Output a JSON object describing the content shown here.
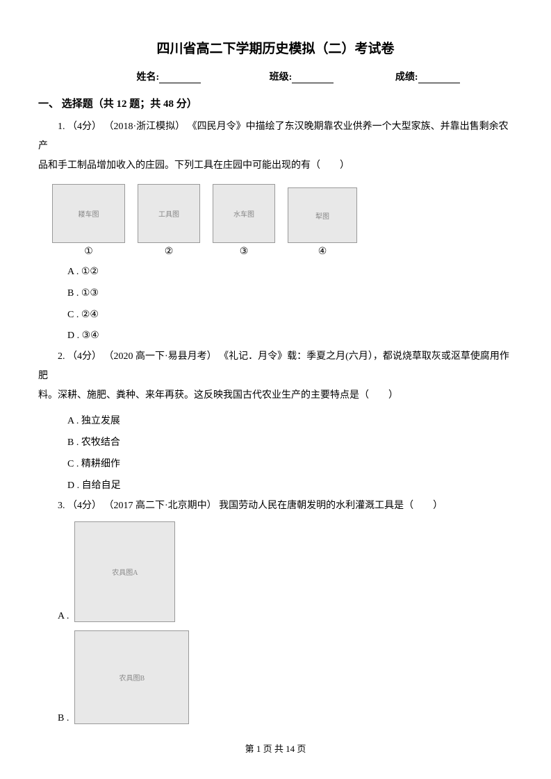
{
  "title": "四川省高二下学期历史模拟（二）考试卷",
  "info": {
    "name_label": "姓名:",
    "class_label": "班级:",
    "score_label": "成绩:"
  },
  "section": {
    "header": "一、 选择题（共 12 题；共 48 分）"
  },
  "q1": {
    "text1": "1. （4分） （2018·浙江模拟） 《四民月令》中描绘了东汉晚期靠农业供养一个大型家族、并靠出售剩余农产",
    "text2": "品和手工制品增加收入的庄园。下列工具在庄园中可能出现的有（　　）",
    "img_labels": [
      "①",
      "②",
      "③",
      "④"
    ],
    "img_alts": [
      "耧车图",
      "工具图",
      "水车图",
      "犁图"
    ],
    "options": {
      "a": "A .  ①②",
      "b": "B .  ①③",
      "c": "C .  ②④",
      "d": "D .  ③④"
    }
  },
  "q2": {
    "text1": "2. （4分） （2020 高一下·易县月考） 《礼记．月令》载：季夏之月(六月），都说烧草取灰或沤草使腐用作肥",
    "text2": "料。深耕、施肥、粪种、来年再获。这反映我国古代农业生产的主要特点是（　　）",
    "options": {
      "a": "A .  独立发展",
      "b": "B .  农牧结合",
      "c": "C .  精耕细作",
      "d": "D .  自给自足"
    }
  },
  "q3": {
    "text": "3. （4分） （2017 高二下·北京期中） 我国劳动人民在唐朝发明的水利灌溉工具是（　　）",
    "opt_a": "A .",
    "opt_b": "B .",
    "img_a_alt": "农具图A",
    "img_b_alt": "农具图B"
  },
  "footer": "第 1 页 共 14 页"
}
